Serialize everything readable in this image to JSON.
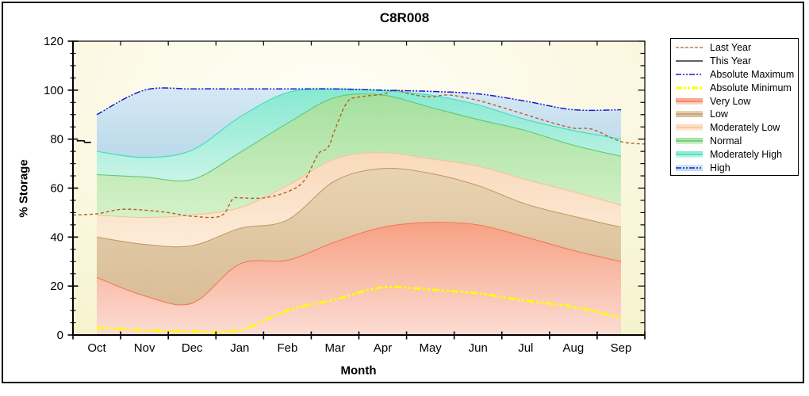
{
  "title": "C8R008",
  "axes": {
    "y_label": "% Storage",
    "x_label": "Month",
    "y_ticks": [
      0,
      20,
      40,
      60,
      80,
      100,
      120
    ]
  },
  "legend": {
    "items": [
      {
        "label": "Last Year",
        "swatch": "line",
        "color": "#b2621f",
        "dash": "4,2",
        "width": 1.3
      },
      {
        "label": "This Year",
        "swatch": "line",
        "color": "#000000",
        "dash": "",
        "width": 1.3
      },
      {
        "label": "Absolute Maximum",
        "swatch": "line",
        "color": "#1a1ad2",
        "dash": "7,2,2,2,2,2",
        "width": 1.4
      },
      {
        "label": "Absolute Minimum",
        "swatch": "line",
        "color": "#ffff00",
        "dash": "8,2,3,2,3,2",
        "width": 3
      },
      {
        "label": "Very Low",
        "swatch": "band",
        "color": "#f4785a",
        "fill_top": "#f7a183",
        "fill_bottom": "#fbdcd3"
      },
      {
        "label": "Low",
        "swatch": "band",
        "color": "#c49a68",
        "fill_top": "#e8d3b2",
        "fill_bottom": "#d9bd97"
      },
      {
        "label": "Moderately Low",
        "swatch": "band",
        "color": "#f3c498",
        "fill_top": "#f9d9ba",
        "fill_bottom": "#fcecd9"
      },
      {
        "label": "Normal",
        "swatch": "band",
        "color": "#5ac878",
        "fill_top": "#a4e09e",
        "fill_bottom": "#d5f1c9"
      },
      {
        "label": "Moderately High",
        "swatch": "band",
        "color": "#3ddcbc",
        "fill_top": "#86e9d1",
        "fill_bottom": "#c9f4e7"
      },
      {
        "label": "High",
        "swatch": "band-line",
        "color": "#1a1ad2",
        "dash": "7,2,2,2,2,2",
        "fill_top": "#d6e8f5",
        "fill_bottom": "#badaea"
      }
    ]
  },
  "colors": {
    "axis": "#000000",
    "plot_bg_edge": "#f6f2cd",
    "plot_bg_center": "#fffef6",
    "last_year": "#b2621f",
    "this_year": "#000000",
    "absolute_maximum": "#1a1ad2",
    "absolute_minimum": "#ffff00",
    "very_low": {
      "line": "#f4785a",
      "top": "#f7a183",
      "bottom": "#fbdcd3"
    },
    "low": {
      "line": "#c49a68",
      "top": "#e8d3b2",
      "bottom": "#d9bd97"
    },
    "mod_low": {
      "line": "#f3c498",
      "top": "#f9d9ba",
      "bottom": "#fcecd9"
    },
    "normal": {
      "line": "#5ac878",
      "top": "#a4e09e",
      "bottom": "#d5f1c9"
    },
    "mod_high": {
      "line": "#3ddcbc",
      "top": "#86e9d1",
      "bottom": "#c9f4e7"
    },
    "high": {
      "line": "#1a1ad2",
      "top": "#d6e8f5",
      "bottom": "#badaea"
    }
  },
  "chart_data": {
    "type": "area",
    "title": "C8R008",
    "xlabel": "Month",
    "ylabel": "% Storage",
    "ylim": [
      0,
      120
    ],
    "y_major_step": 20,
    "y_minor_step": 5,
    "grid": false,
    "legend_position": "top-right",
    "categories": [
      "Oct",
      "Nov",
      "Dec",
      "Jan",
      "Feb",
      "Mar",
      "Apr",
      "May",
      "Jun",
      "Jul",
      "Aug",
      "Sep"
    ],
    "band_boundaries": {
      "very_low_top": [
        23.5,
        16,
        13,
        29,
        30.5,
        38,
        44,
        46,
        45,
        40,
        34.5,
        30
      ],
      "low_top": [
        40,
        37,
        36.5,
        43.5,
        47,
        63,
        68,
        66,
        61,
        53.5,
        48.5,
        44
      ],
      "mod_low_top": [
        49,
        48,
        49,
        52,
        61,
        72,
        74.5,
        72,
        69,
        63.5,
        58.5,
        53
      ],
      "normal_top": [
        65.5,
        64.5,
        63.5,
        74.5,
        86.5,
        97,
        98,
        93,
        88,
        83.5,
        77.5,
        73
      ],
      "mod_high_top": [
        75,
        72.5,
        75.5,
        89,
        99,
        100.5,
        99.8,
        98,
        94,
        88,
        83.5,
        80
      ],
      "absolute_maximum": [
        90,
        100,
        100.5,
        100.5,
        100.5,
        100.5,
        100,
        99.5,
        98.5,
        95.5,
        92,
        92
      ]
    },
    "lines": {
      "absolute_minimum": [
        3,
        2,
        1.5,
        2,
        10,
        14.5,
        19.5,
        18.5,
        17,
        14,
        11.5,
        7
      ],
      "last_year": [
        [
          -0.5,
          49
        ],
        [
          0,
          49.5
        ],
        [
          0.5,
          51.3
        ],
        [
          1,
          51
        ],
        [
          1.5,
          50
        ],
        [
          2,
          48.5
        ],
        [
          2.6,
          48.6
        ],
        [
          2.85,
          55.5
        ],
        [
          3,
          56
        ],
        [
          3.5,
          56
        ],
        [
          4,
          58.5
        ],
        [
          4.35,
          63
        ],
        [
          4.65,
          74
        ],
        [
          4.85,
          76.5
        ],
        [
          5,
          84
        ],
        [
          5.25,
          95
        ],
        [
          5.5,
          97.2
        ],
        [
          6,
          98.3
        ],
        [
          6.25,
          100
        ],
        [
          6.6,
          98.3
        ],
        [
          7,
          97.3
        ],
        [
          7.4,
          98
        ],
        [
          8,
          95.8
        ],
        [
          8.5,
          93
        ],
        [
          9,
          90
        ],
        [
          9.5,
          87
        ],
        [
          10,
          84.5
        ],
        [
          10.4,
          84
        ],
        [
          11,
          79
        ],
        [
          11.5,
          78
        ]
      ],
      "this_year": [
        [
          -0.42,
          79.3
        ],
        [
          -0.27,
          79.3
        ],
        [
          -0.25,
          78.7
        ],
        [
          -0.12,
          78.7
        ]
      ]
    }
  }
}
